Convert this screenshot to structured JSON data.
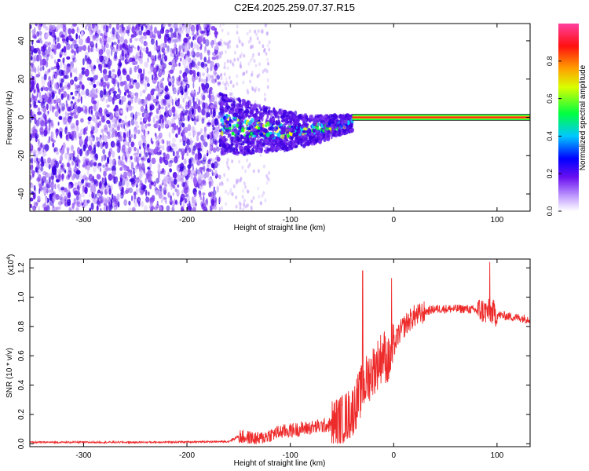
{
  "figure": {
    "title": "C2E4.2025.259.07.37.R15"
  },
  "colors": {
    "snr_line": "#ee2b2b",
    "signal_band": "#f02020",
    "noise": "#5a10e8",
    "colormap": [
      "#ffffff",
      "#a070ff",
      "#0000ff",
      "#00d8ff",
      "#00ff30",
      "#ffff00",
      "#ff8000",
      "#ff0000",
      "#ff00a0"
    ]
  },
  "chart_data": [
    {
      "type": "heatmap",
      "xlabel": "Height of straight line (km)",
      "ylabel": "Frequency (Hz)",
      "xlim": [
        -352,
        132
      ],
      "ylim": [
        -49,
        49
      ],
      "xticks": [
        -300,
        -200,
        -100,
        0,
        100
      ],
      "xtick_labels": [
        "-300",
        "-200",
        "-100",
        "0",
        "100"
      ],
      "yticks": [
        40,
        20,
        0,
        -20,
        -40
      ],
      "ytick_labels": [
        "40",
        "20",
        "0",
        "-20",
        "-40"
      ],
      "grid": false,
      "regions": [
        {
          "name": "noise",
          "x_range": [
            -352,
            -168
          ],
          "amplitude": 0.12
        },
        {
          "name": "transition",
          "x_range": [
            -168,
            -40
          ],
          "amplitude": 0.35
        },
        {
          "name": "carrier",
          "x_range": [
            -40,
            132
          ],
          "frequency": 0,
          "amplitude": 0.95
        }
      ],
      "colorbar": {
        "label": "Normalized spectral amplitude",
        "range": [
          0,
          1
        ],
        "ticks": [
          0.0,
          0.2,
          0.4,
          0.6,
          0.8
        ],
        "tick_labels": [
          "0.0",
          "0.2",
          "0.4",
          "0.6",
          "0.8"
        ]
      }
    },
    {
      "type": "line",
      "xlabel": "Height of straight line (km)",
      "ylabel": "SNR (10 * v/v)",
      "scale_note": "(x10",
      "scale_exp": "4",
      "scale_close": ")",
      "xlim": [
        -352,
        132
      ],
      "ylim": [
        -0.02,
        1.26
      ],
      "xticks": [
        -300,
        -200,
        -100,
        0,
        100
      ],
      "xtick_labels": [
        "-300",
        "-200",
        "-100",
        "0",
        "100"
      ],
      "yticks": [
        0.0,
        0.2,
        0.4,
        0.6,
        0.8,
        1.0,
        1.2
      ],
      "ytick_labels": [
        "0.0",
        "0.2",
        "0.4",
        "0.6",
        "0.8",
        "1.0",
        "1.2"
      ],
      "grid": false,
      "series": [
        {
          "name": "SNR",
          "x": [
            -352,
            -300,
            -250,
            -200,
            -160,
            -150,
            -140,
            -130,
            -120,
            -110,
            -100,
            -90,
            -80,
            -70,
            -60,
            -50,
            -40,
            -35,
            -30,
            -25,
            -20,
            -15,
            -10,
            -5,
            0,
            5,
            10,
            15,
            20,
            25,
            30,
            35,
            40,
            50,
            60,
            70,
            80,
            85,
            90,
            95,
            100,
            110,
            120,
            132
          ],
          "y": [
            0.01,
            0.01,
            0.01,
            0.012,
            0.015,
            0.05,
            0.04,
            0.03,
            0.06,
            0.08,
            0.09,
            0.1,
            0.11,
            0.12,
            0.13,
            0.16,
            0.22,
            0.3,
            0.38,
            0.45,
            0.5,
            0.55,
            0.62,
            0.55,
            0.66,
            0.75,
            0.8,
            0.84,
            0.87,
            0.88,
            0.9,
            0.91,
            0.92,
            0.92,
            0.92,
            0.92,
            0.91,
            0.91,
            0.9,
            0.9,
            0.88,
            0.87,
            0.86,
            0.85
          ]
        }
      ]
    }
  ]
}
